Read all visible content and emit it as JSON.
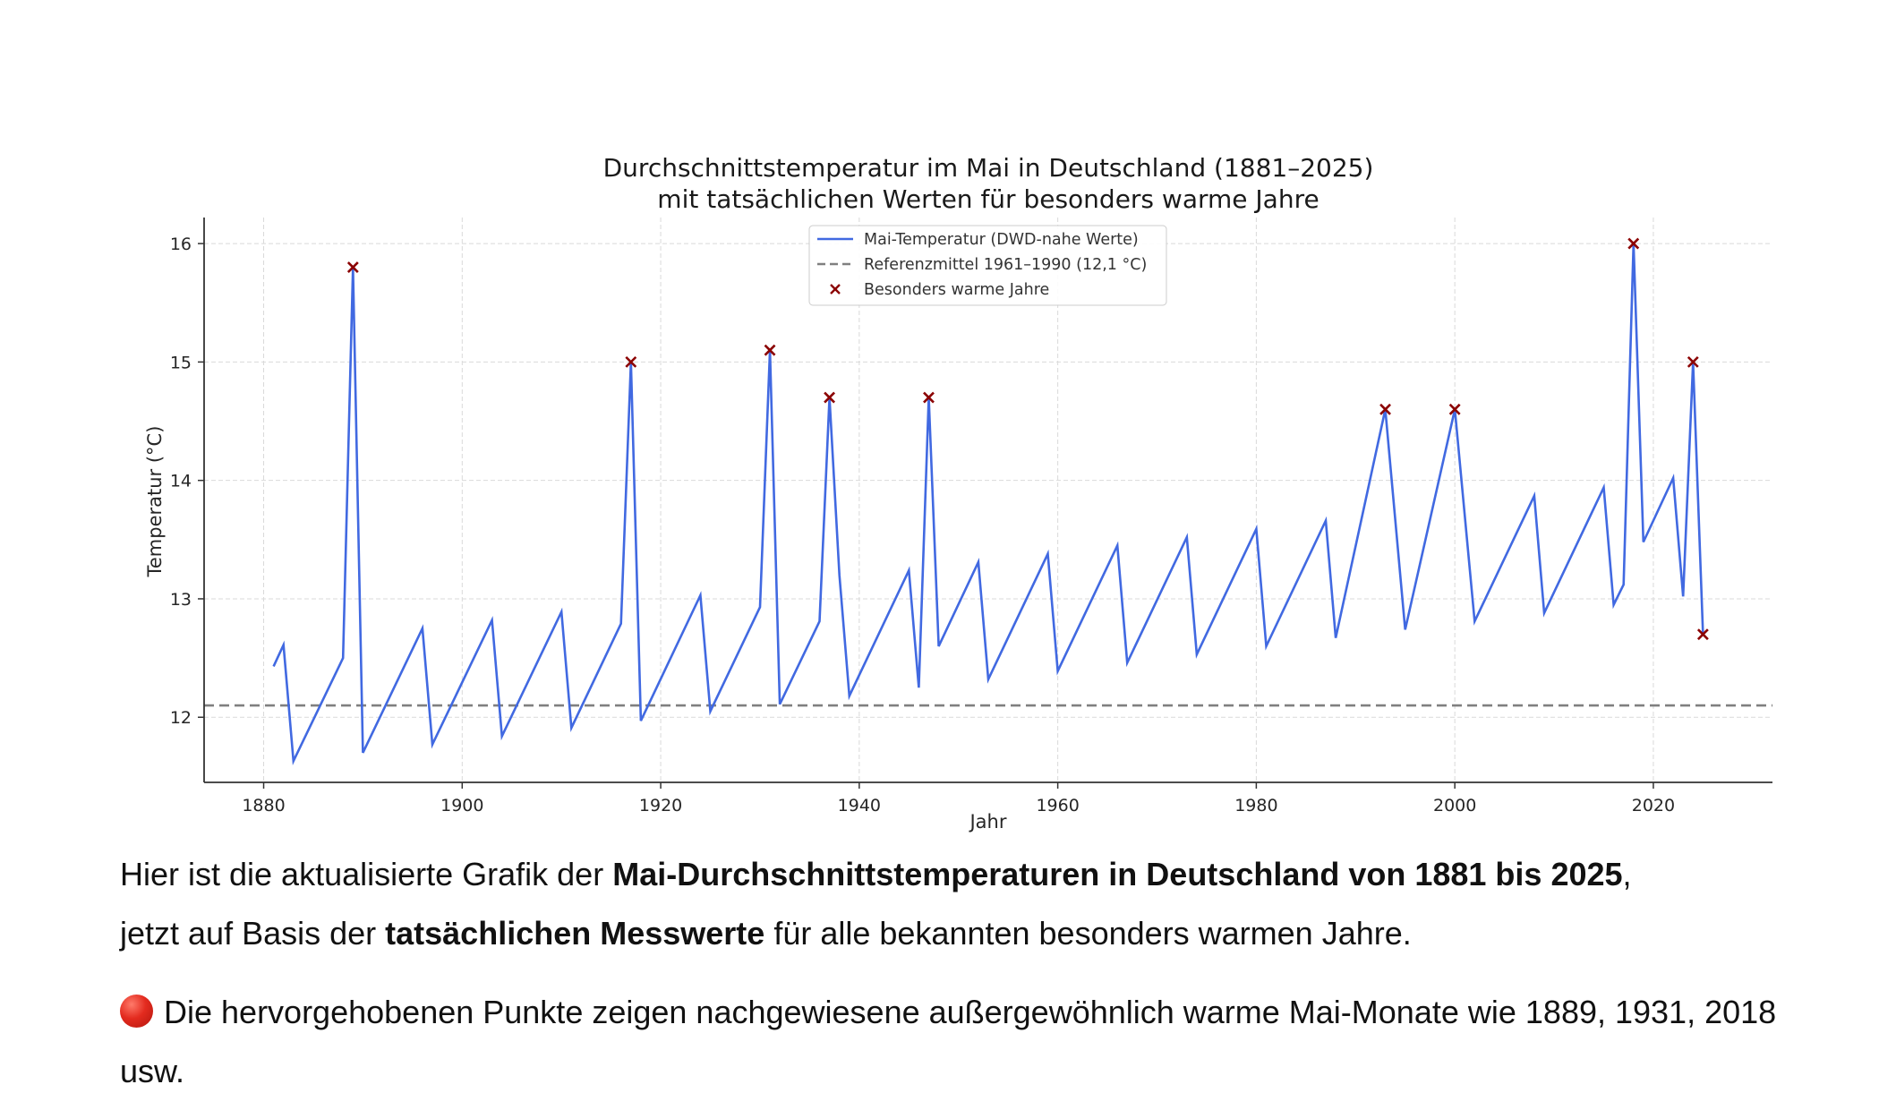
{
  "chart_data": {
    "type": "line",
    "title": "Durchschnittstemperatur im Mai in Deutschland (1881–2025)",
    "subtitle": "mit tatsächlichen Werten für besonders warme Jahre",
    "xlabel": "Jahr",
    "ylabel": "Temperatur (°C)",
    "xlim": [
      1874,
      2032
    ],
    "ylim": [
      11.45,
      16.22
    ],
    "x_ticks": [
      1880,
      1900,
      1920,
      1940,
      1960,
      1980,
      2000,
      2020
    ],
    "y_ticks": [
      12,
      13,
      14,
      15,
      16
    ],
    "grid": true,
    "legend_position": "upper center",
    "legend": [
      "Mai-Temperatur (DWD-nahe Werte)",
      "Referenzmittel 1961–1990 (12,1 °C)",
      "Besonders warme Jahre"
    ],
    "series": [
      {
        "name": "Mai-Temperatur (DWD-nahe Werte)",
        "style": "line",
        "color": "#4169e1",
        "x": [
          1881,
          1882,
          1883,
          1888,
          1889,
          1890,
          1896,
          1897,
          1903,
          1904,
          1910,
          1911,
          1916,
          1917,
          1918,
          1924,
          1925,
          1930,
          1931,
          1932,
          1936,
          1937,
          1938,
          1939,
          1945,
          1946,
          1947,
          1948,
          1952,
          1953,
          1959,
          1960,
          1966,
          1967,
          1973,
          1974,
          1980,
          1981,
          1987,
          1988,
          1993,
          1995,
          2000,
          2002,
          2008,
          2009,
          2015,
          2016,
          2017,
          2018,
          2019,
          2022,
          2023,
          2024,
          2025
        ],
        "y": [
          12.43,
          12.61,
          11.63,
          12.5,
          15.8,
          11.7,
          12.75,
          11.77,
          12.82,
          11.84,
          12.89,
          11.91,
          12.79,
          15.0,
          11.97,
          13.03,
          12.05,
          12.93,
          15.1,
          12.11,
          12.81,
          14.7,
          13.2,
          12.18,
          13.24,
          12.25,
          14.7,
          12.6,
          13.31,
          12.32,
          13.38,
          12.39,
          13.45,
          12.46,
          13.52,
          12.53,
          13.59,
          12.6,
          13.66,
          12.67,
          14.6,
          12.74,
          14.6,
          12.81,
          13.87,
          12.88,
          13.94,
          12.95,
          13.12,
          16.0,
          13.48,
          14.02,
          13.02,
          15.0,
          12.7
        ]
      },
      {
        "name": "Referenzmittel 1961–1990 (12,1 °C)",
        "style": "dashed",
        "color": "#808080",
        "value": 12.1
      },
      {
        "name": "Besonders warme Jahre",
        "style": "marker-x",
        "color": "#8b0000",
        "x": [
          1889,
          1917,
          1931,
          1937,
          1947,
          1993,
          2000,
          2018,
          2024,
          2025
        ],
        "y": [
          15.8,
          15.0,
          15.1,
          14.7,
          14.7,
          14.6,
          14.6,
          16.0,
          15.0,
          12.7
        ]
      }
    ]
  },
  "text": {
    "p1_part1": "Hier ist die aktualisierte Grafik der ",
    "p1_bold1": "Mai-Durchschnittstemperaturen in Deutschland von 1881 bis 2025",
    "p1_part2": ",",
    "p1_part3": "jetzt auf Basis der ",
    "p1_bold2": "tatsächlichen Messwerte",
    "p1_part4": " für alle bekannten besonders warmen Jahre.",
    "p2": "Die hervorgehobenen Punkte zeigen nachgewiesene außergewöhnlich warme Mai-Monate wie 1889, 1931, 2018 usw.",
    "p2_icon": "red-circle-emoji"
  }
}
